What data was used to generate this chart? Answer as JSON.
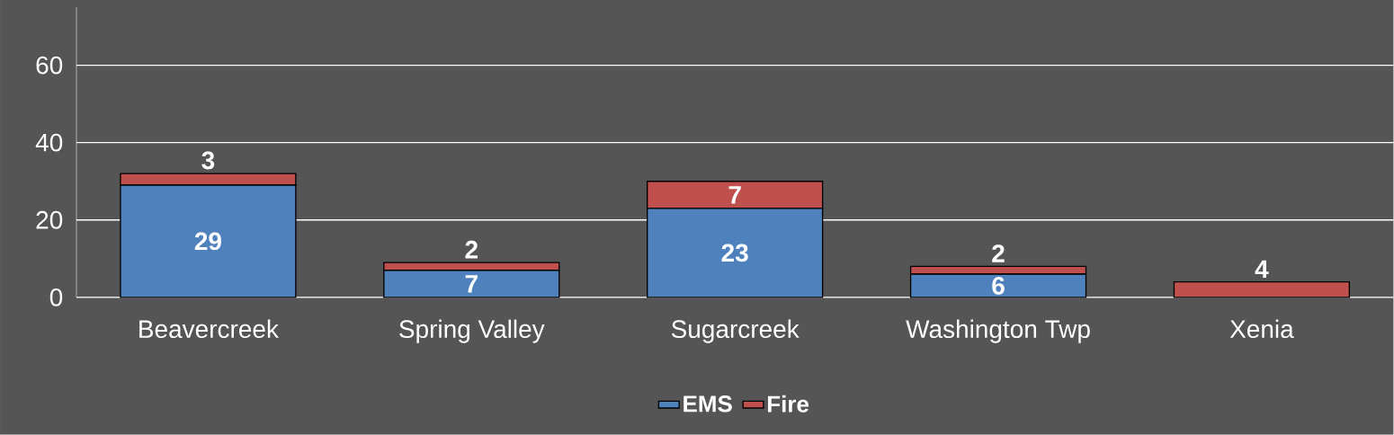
{
  "chart_data": {
    "type": "bar",
    "stacked": true,
    "categories": [
      "Beavercreek",
      "Spring Valley",
      "Sugarcreek",
      "Washington Twp",
      "Xenia"
    ],
    "series": [
      {
        "name": "EMS",
        "color": "#4f81bd",
        "values": [
          29,
          7,
          23,
          6,
          0
        ],
        "value_labels": [
          "29",
          "7",
          "23",
          "6",
          null
        ]
      },
      {
        "name": "Fire",
        "color": "#c0504d",
        "values": [
          3,
          2,
          7,
          2,
          4
        ],
        "value_labels": [
          "3",
          "2",
          "7",
          "2",
          "4"
        ]
      }
    ],
    "ylim": [
      0,
      75
    ],
    "yticks": [
      0,
      20,
      40,
      60
    ],
    "grid": "y",
    "legend": "bottom"
  }
}
